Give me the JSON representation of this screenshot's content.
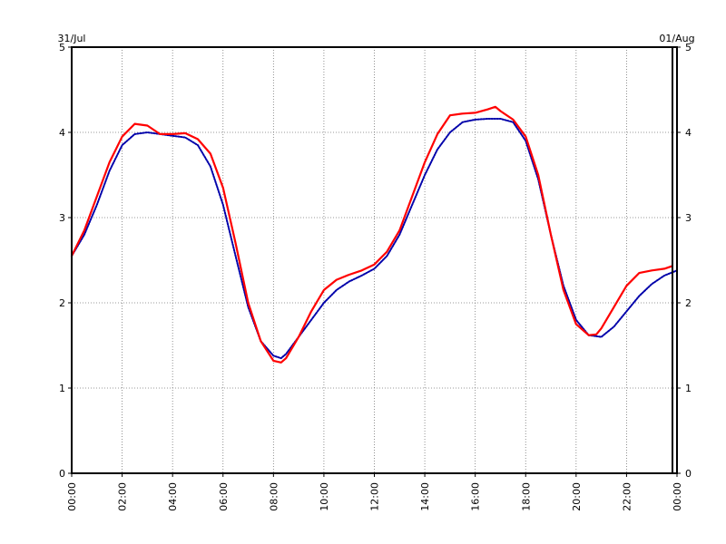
{
  "chart_data": {
    "type": "line",
    "title": "",
    "xlabel": "",
    "ylabel": "",
    "date_labels": {
      "left": "31/Jul",
      "right": "01/Aug"
    },
    "x_tick_labels": [
      "00:00",
      "02:00",
      "04:00",
      "06:00",
      "08:00",
      "10:00",
      "12:00",
      "14:00",
      "16:00",
      "18:00",
      "20:00",
      "22:00",
      "00:00"
    ],
    "x_tick_hours": [
      0,
      2,
      4,
      6,
      8,
      10,
      12,
      14,
      16,
      18,
      20,
      22,
      24
    ],
    "xlim_hours": [
      0,
      24
    ],
    "ylim": [
      0,
      5
    ],
    "y_ticks": [
      0,
      1,
      2,
      3,
      4,
      5
    ],
    "grid": true,
    "series": [
      {
        "color": "#0000aa",
        "style": "dotted",
        "x_hours": [
          0,
          0.5,
          1,
          1.5,
          2,
          2.5,
          3,
          3.5,
          4,
          4.5,
          5,
          5.5,
          6,
          6.5,
          7,
          7.5,
          8,
          8.3,
          8.5,
          9,
          9.5,
          10,
          10.5,
          11,
          11.5,
          12,
          12.5,
          13,
          13.5,
          14,
          14.5,
          15,
          15.5,
          16,
          16.5,
          17,
          17.5,
          18,
          18.5,
          19,
          19.5,
          20,
          20.5,
          21,
          21.5,
          22,
          22.5,
          23,
          23.5,
          24
        ],
        "values": [
          2.55,
          2.8,
          3.15,
          3.55,
          3.85,
          3.98,
          4.0,
          3.98,
          3.96,
          3.94,
          3.85,
          3.6,
          3.15,
          2.55,
          1.95,
          1.55,
          1.38,
          1.35,
          1.4,
          1.6,
          1.8,
          2.0,
          2.15,
          2.25,
          2.32,
          2.4,
          2.55,
          2.8,
          3.15,
          3.5,
          3.8,
          4.0,
          4.12,
          4.15,
          4.16,
          4.16,
          4.12,
          3.9,
          3.45,
          2.8,
          2.2,
          1.8,
          1.62,
          1.6,
          1.72,
          1.9,
          2.08,
          2.22,
          2.32,
          2.38
        ]
      },
      {
        "color": "#ff0000",
        "style": "solid",
        "x_hours": [
          0,
          0.5,
          1,
          1.5,
          2,
          2.5,
          3,
          3.5,
          4,
          4.5,
          5,
          5.5,
          6,
          6.5,
          7,
          7.5,
          8,
          8.3,
          8.5,
          9,
          9.5,
          10,
          10.5,
          11,
          11.5,
          12,
          12.5,
          13,
          13.5,
          14,
          14.5,
          15,
          15.5,
          16,
          16.5,
          16.8,
          17,
          17.5,
          18,
          18.5,
          19,
          19.5,
          20,
          20.5,
          20.8,
          21,
          21.5,
          22,
          22.5,
          23,
          23.5,
          23.8
        ],
        "values": [
          2.55,
          2.85,
          3.25,
          3.65,
          3.95,
          4.1,
          4.08,
          3.98,
          3.98,
          3.99,
          3.92,
          3.75,
          3.35,
          2.7,
          2.0,
          1.55,
          1.32,
          1.3,
          1.35,
          1.6,
          1.9,
          2.15,
          2.27,
          2.33,
          2.38,
          2.45,
          2.6,
          2.85,
          3.25,
          3.65,
          3.98,
          4.2,
          4.22,
          4.23,
          4.27,
          4.3,
          4.25,
          4.15,
          3.95,
          3.5,
          2.8,
          2.15,
          1.75,
          1.62,
          1.63,
          1.7,
          1.95,
          2.2,
          2.35,
          2.38,
          2.4,
          2.43
        ]
      }
    ]
  }
}
